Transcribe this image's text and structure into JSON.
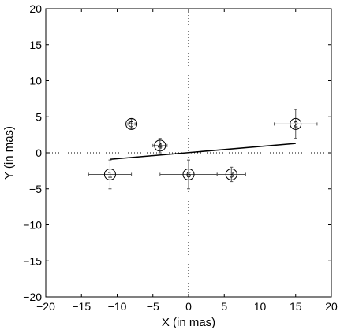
{
  "chart_data": {
    "type": "scatter",
    "title": "",
    "xlabel": "X (in mas)",
    "ylabel": "Y (in mas)",
    "xlim": [
      -20,
      20
    ],
    "ylim": [
      -20,
      20
    ],
    "xticks": [
      -20,
      -15,
      -10,
      -5,
      0,
      5,
      10,
      15,
      20
    ],
    "yticks": [
      -20,
      -15,
      -10,
      -5,
      0,
      5,
      10,
      15,
      20
    ],
    "tick_labels_x": [
      "−20",
      "−15",
      "−10",
      "−5",
      "0",
      "5",
      "10",
      "15",
      "20"
    ],
    "tick_labels_y": [
      "−20",
      "−15",
      "−10",
      "−5",
      "0",
      "5",
      "10",
      "15",
      "20"
    ],
    "grid": false,
    "reference_lines": {
      "x": 0,
      "y": 0,
      "style": "dotted"
    },
    "points": [
      {
        "label": "1",
        "x": -11,
        "y": -3,
        "xerr": 3,
        "yerr": 2
      },
      {
        "label": "2",
        "x": 15,
        "y": 4,
        "xerr": 3,
        "yerr": 2
      },
      {
        "label": "3",
        "x": 6,
        "y": -3,
        "xerr": 2,
        "yerr": 1
      },
      {
        "label": "4",
        "x": -4,
        "y": 1,
        "xerr": 1,
        "yerr": 1
      },
      {
        "label": "5",
        "x": -8,
        "y": 4,
        "xerr": 0.5,
        "yerr": 0.7
      },
      {
        "label": "6",
        "x": 0,
        "y": -3,
        "xerr": 4,
        "yerr": 2
      }
    ],
    "fit_line": {
      "x": [
        -11,
        15
      ],
      "y": [
        -0.9,
        1.3
      ]
    }
  }
}
